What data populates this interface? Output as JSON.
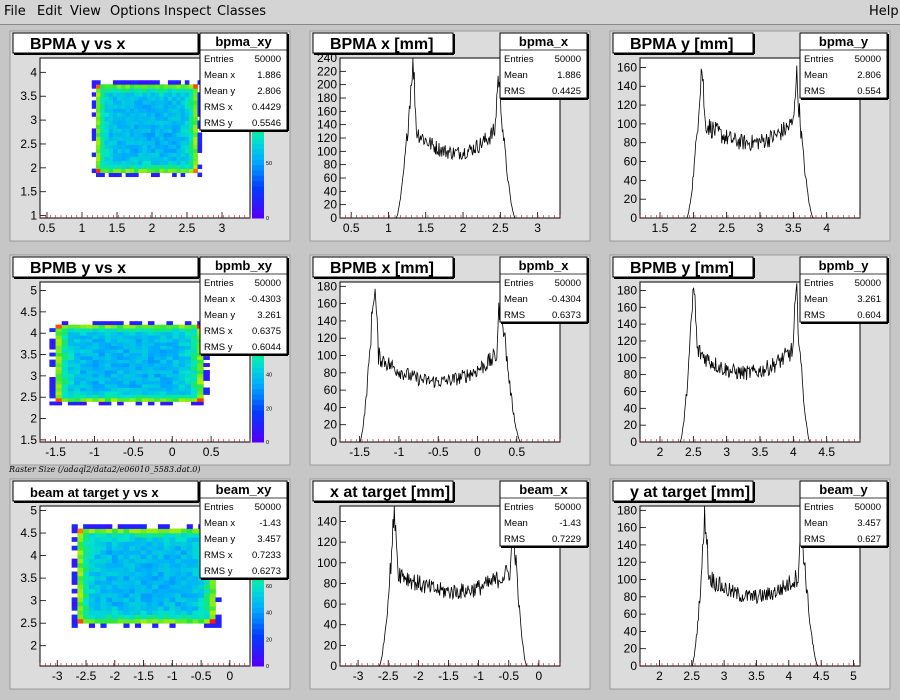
{
  "menu": {
    "file": "File",
    "edit": "Edit",
    "view": "View",
    "options": "Options",
    "inspect": "Inspect",
    "classes": "Classes",
    "help": "Help"
  },
  "canvas_caption": "Raster Size (/adaql2/data2/e06010_5583.dat.0)",
  "stat_labels": {
    "entries": "Entries",
    "mean_x": "Mean x",
    "mean_y": "Mean y",
    "rms_x": "RMS x",
    "rms_y": "RMS y",
    "mean": "Mean",
    "rms": "RMS"
  },
  "colors": {
    "frame_bg": "#ffffff",
    "canvas_bg": "#c6c6c6",
    "hist_line": "#000000",
    "tick_red": "#cc0000"
  },
  "chart_data": [
    {
      "id": "bpma-xy",
      "type": "heatmap",
      "title": "BPMA y vs x",
      "stats_name": "bpma_xy",
      "stats": {
        "entries": "50000",
        "mean_x": "1.886",
        "mean_y": "2.806",
        "rms_x": "0.4429",
        "rms_y": "0.5546"
      },
      "xlim": [
        0.4,
        3.4
      ],
      "ylim": [
        0.95,
        4.3
      ],
      "xticks": [
        "0.5",
        "1",
        "1.5",
        "2",
        "2.5",
        "3"
      ],
      "yticks": [
        "1",
        "1.5",
        "2",
        "2.5",
        "3",
        "3.5",
        "4"
      ],
      "box": [
        1.2,
        2.65,
        1.9,
        3.75
      ],
      "zticks": [
        "0",
        "50",
        "100"
      ],
      "zmax": 145
    },
    {
      "id": "bpma-x",
      "type": "line",
      "title": "BPMA x [mm]",
      "stats_name": "bpma_x",
      "stats": {
        "entries": "50000",
        "mean": "1.886",
        "rms": "0.4425"
      },
      "xlim": [
        0.35,
        3.3
      ],
      "ylim": [
        0,
        240
      ],
      "xticks": [
        "0.5",
        "1",
        "1.5",
        "2",
        "2.5",
        "3"
      ],
      "yticks": [
        "0",
        "20",
        "40",
        "60",
        "80",
        "100",
        "120",
        "140",
        "160",
        "180",
        "200",
        "220",
        "240"
      ],
      "shape": {
        "lo": 1.1,
        "hi": 2.7,
        "p1": 1.32,
        "p2": 2.48,
        "peak1": 230,
        "peak2": 210,
        "valley": 98,
        "edge": 0.06
      }
    },
    {
      "id": "bpma-y",
      "type": "line",
      "title": "BPMA y [mm]",
      "stats_name": "bpma_y",
      "stats": {
        "entries": "50000",
        "mean": "2.806",
        "rms": "0.554"
      },
      "xlim": [
        1.2,
        4.5
      ],
      "ylim": [
        0,
        170
      ],
      "xticks": [
        "1.5",
        "2",
        "2.5",
        "3",
        "3.5",
        "4"
      ],
      "yticks": [
        "0",
        "20",
        "40",
        "60",
        "80",
        "100",
        "120",
        "140",
        "160"
      ],
      "shape": {
        "lo": 1.9,
        "hi": 3.8,
        "p1": 2.12,
        "p2": 3.55,
        "peak1": 160,
        "peak2": 150,
        "valley": 80,
        "edge": 0.07
      }
    },
    {
      "id": "bpmb-xy",
      "type": "heatmap",
      "title": "BPMB y vs x",
      "stats_name": "bpmb_xy",
      "stats": {
        "entries": "50000",
        "mean_x": "-0.4303",
        "mean_y": "3.261",
        "rms_x": "0.6375",
        "rms_y": "0.6044"
      },
      "xlim": [
        -1.7,
        1.0
      ],
      "ylim": [
        1.45,
        5.2
      ],
      "xticks": [
        "-1.5",
        "-1",
        "-0.5",
        "0",
        "0.5"
      ],
      "yticks": [
        "1.5",
        "2",
        "2.5",
        "3",
        "3.5",
        "4",
        "4.5",
        "5"
      ],
      "box": [
        -1.5,
        0.4,
        2.4,
        4.2
      ],
      "zticks": [
        "0",
        "20",
        "40",
        "60",
        "80"
      ],
      "zmax": 95
    },
    {
      "id": "bpmb-x",
      "type": "line",
      "title": "BPMB x [mm]",
      "stats_name": "bpmb_x",
      "stats": {
        "entries": "50000",
        "mean": "-0.4304",
        "rms": "0.6373"
      },
      "xlim": [
        -1.75,
        1.05
      ],
      "ylim": [
        0,
        185
      ],
      "xticks": [
        "-1.5",
        "-1",
        "-0.5",
        "0",
        "0.5"
      ],
      "yticks": [
        "0",
        "20",
        "40",
        "60",
        "80",
        "100",
        "120",
        "140",
        "160",
        "180"
      ],
      "shape": {
        "lo": -1.5,
        "hi": 0.55,
        "p1": -1.32,
        "p2": 0.3,
        "peak1": 178,
        "peak2": 168,
        "valley": 70,
        "edge": 0.07
      }
    },
    {
      "id": "bpmb-y",
      "type": "line",
      "title": "BPMB y [mm]",
      "stats_name": "bpmb_y",
      "stats": {
        "entries": "50000",
        "mean": "3.261",
        "rms": "0.604"
      },
      "xlim": [
        1.7,
        5.0
      ],
      "ylim": [
        0,
        190
      ],
      "xticks": [
        "2",
        "2.5",
        "3",
        "3.5",
        "4",
        "4.5"
      ],
      "yticks": [
        "0",
        "20",
        "40",
        "60",
        "80",
        "100",
        "120",
        "140",
        "160",
        "180"
      ],
      "shape": {
        "lo": 2.3,
        "hi": 4.25,
        "p1": 2.5,
        "p2": 4.05,
        "peak1": 182,
        "peak2": 172,
        "valley": 82,
        "edge": 0.07
      }
    },
    {
      "id": "beam-xy",
      "type": "heatmap",
      "title": "beam at target y vs x",
      "stats_name": "beam_xy",
      "stats": {
        "entries": "50000",
        "mean_x": "-1.43",
        "mean_y": "3.457",
        "rms_x": "0.7233",
        "rms_y": "0.6273"
      },
      "xlim": [
        -3.3,
        0.35
      ],
      "ylim": [
        1.55,
        5.1
      ],
      "xticks": [
        "-3",
        "-2.5",
        "-2",
        "-1.5",
        "-1",
        "-0.5",
        "0"
      ],
      "yticks": [
        "2",
        "2.5",
        "3",
        "3.5",
        "4",
        "4.5",
        "5"
      ],
      "box": [
        -2.65,
        -0.25,
        2.5,
        4.6
      ],
      "zticks": [
        "0",
        "20",
        "40",
        "60",
        "80",
        "100"
      ],
      "zmax": 120
    },
    {
      "id": "beam-x",
      "type": "line",
      "title": "x at target [mm]",
      "stats_name": "beam_x",
      "stats": {
        "entries": "50000",
        "mean": "-1.43",
        "rms": "0.7229"
      },
      "xlim": [
        -3.3,
        0.35
      ],
      "ylim": [
        0,
        155
      ],
      "xticks": [
        "-3",
        "-2.5",
        "-2",
        "-1.5",
        "-1",
        "-0.5",
        "0"
      ],
      "yticks": [
        "0",
        "20",
        "40",
        "60",
        "80",
        "100",
        "120",
        "140"
      ],
      "shape": {
        "lo": -2.65,
        "hi": -0.2,
        "p1": -2.4,
        "p2": -0.42,
        "peak1": 150,
        "peak2": 136,
        "valley": 72,
        "edge": 0.08
      }
    },
    {
      "id": "beam-y",
      "type": "line",
      "title": "y at target [mm]",
      "stats_name": "beam_y",
      "stats": {
        "entries": "50000",
        "mean": "3.457",
        "rms": "0.627"
      },
      "xlim": [
        1.7,
        5.1
      ],
      "ylim": [
        0,
        185
      ],
      "xticks": [
        "2",
        "2.5",
        "3",
        "3.5",
        "4",
        "4.5",
        "5"
      ],
      "yticks": [
        "0",
        "20",
        "40",
        "60",
        "80",
        "100",
        "120",
        "140",
        "160",
        "180"
      ],
      "shape": {
        "lo": 2.5,
        "hi": 4.45,
        "p1": 2.7,
        "p2": 4.2,
        "peak1": 172,
        "peak2": 160,
        "valley": 80,
        "edge": 0.08
      }
    }
  ]
}
